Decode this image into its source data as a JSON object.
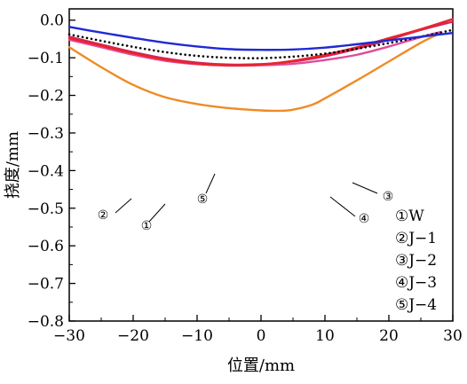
{
  "chart_data": {
    "type": "line",
    "xlabel": "位置/mm",
    "ylabel": "挠度/mm",
    "xlim": [
      -30,
      30
    ],
    "ylim": [
      -0.8,
      0.0
    ],
    "xticks": [
      -30,
      -20,
      -10,
      0,
      10,
      20,
      30
    ],
    "xtick_labels": [
      "−30",
      "−20",
      "−10",
      "0",
      "10",
      "20",
      "30"
    ],
    "yticks": [
      0.0,
      -0.1,
      -0.2,
      -0.3,
      -0.4,
      -0.5,
      -0.6,
      -0.7,
      -0.8
    ],
    "ytick_labels": [
      "0.0",
      "−0.1",
      "−0.2",
      "−0.3",
      "−0.4",
      "−0.5",
      "−0.6",
      "−0.7",
      "−0.8"
    ],
    "grid": false,
    "legend_position": "bottom-right",
    "series": [
      {
        "name": "W",
        "marker": "①",
        "color": "#e8262a",
        "dash": "solid",
        "x": [
          -30,
          -25,
          -20,
          -15,
          -10,
          -5,
          0,
          5,
          10,
          15,
          20,
          25,
          30
        ],
        "y": [
          -0.048,
          -0.068,
          -0.088,
          -0.105,
          -0.116,
          -0.12,
          -0.118,
          -0.108,
          -0.092,
          -0.072,
          -0.048,
          -0.024,
          0.003
        ]
      },
      {
        "name": "J−1",
        "marker": "②",
        "color": "#f08a24",
        "dash": "solid",
        "x": [
          -30,
          -25,
          -20,
          -15,
          -10,
          -5,
          0,
          3,
          5,
          8,
          10,
          15,
          20,
          25,
          28
        ],
        "y": [
          -0.072,
          -0.125,
          -0.172,
          -0.205,
          -0.223,
          -0.234,
          -0.24,
          -0.241,
          -0.238,
          -0.225,
          -0.208,
          -0.16,
          -0.11,
          -0.06,
          -0.035
        ]
      },
      {
        "name": "J−2",
        "marker": "③",
        "color": "#e04a9a",
        "dash": "solid",
        "x": [
          -30,
          -25,
          -20,
          -15,
          -10,
          -5,
          0,
          5,
          10,
          15,
          20,
          25,
          28
        ],
        "y": [
          -0.052,
          -0.072,
          -0.092,
          -0.108,
          -0.117,
          -0.121,
          -0.12,
          -0.116,
          -0.106,
          -0.092,
          -0.07,
          -0.045,
          -0.032
        ]
      },
      {
        "name": "J−3",
        "marker": "④",
        "color": "#d1245d",
        "dash": "solid",
        "x": [
          -30,
          -25,
          -20,
          -15,
          -10,
          -5,
          0,
          5,
          10,
          15,
          20,
          25,
          30
        ],
        "y": [
          -0.044,
          -0.065,
          -0.085,
          -0.102,
          -0.113,
          -0.118,
          -0.117,
          -0.11,
          -0.096,
          -0.076,
          -0.052,
          -0.026,
          -0.004
        ]
      },
      {
        "name": "J−4",
        "marker": "⑤",
        "color": "#1f2ad4",
        "dash": "solid",
        "x": [
          -30,
          -25,
          -20,
          -15,
          -10,
          -5,
          0,
          5,
          10,
          15,
          20,
          25,
          30
        ],
        "y": [
          -0.018,
          -0.033,
          -0.047,
          -0.06,
          -0.07,
          -0.077,
          -0.079,
          -0.078,
          -0.073,
          -0.064,
          -0.054,
          -0.044,
          -0.034
        ]
      },
      {
        "name": "",
        "color": "#000000",
        "dash": "dotted",
        "x": [
          -30,
          -25,
          -20,
          -15,
          -10,
          -5,
          0,
          5,
          10,
          15,
          20,
          25,
          30
        ],
        "y": [
          -0.038,
          -0.055,
          -0.071,
          -0.085,
          -0.095,
          -0.1,
          -0.101,
          -0.097,
          -0.089,
          -0.076,
          -0.061,
          -0.044,
          -0.026
        ]
      }
    ],
    "legend": [
      "①W",
      "②J−1",
      "③J−2",
      "④J−3",
      "⑤J−4"
    ],
    "annotations": [
      "①",
      "②",
      "③",
      "④",
      "⑤"
    ]
  }
}
